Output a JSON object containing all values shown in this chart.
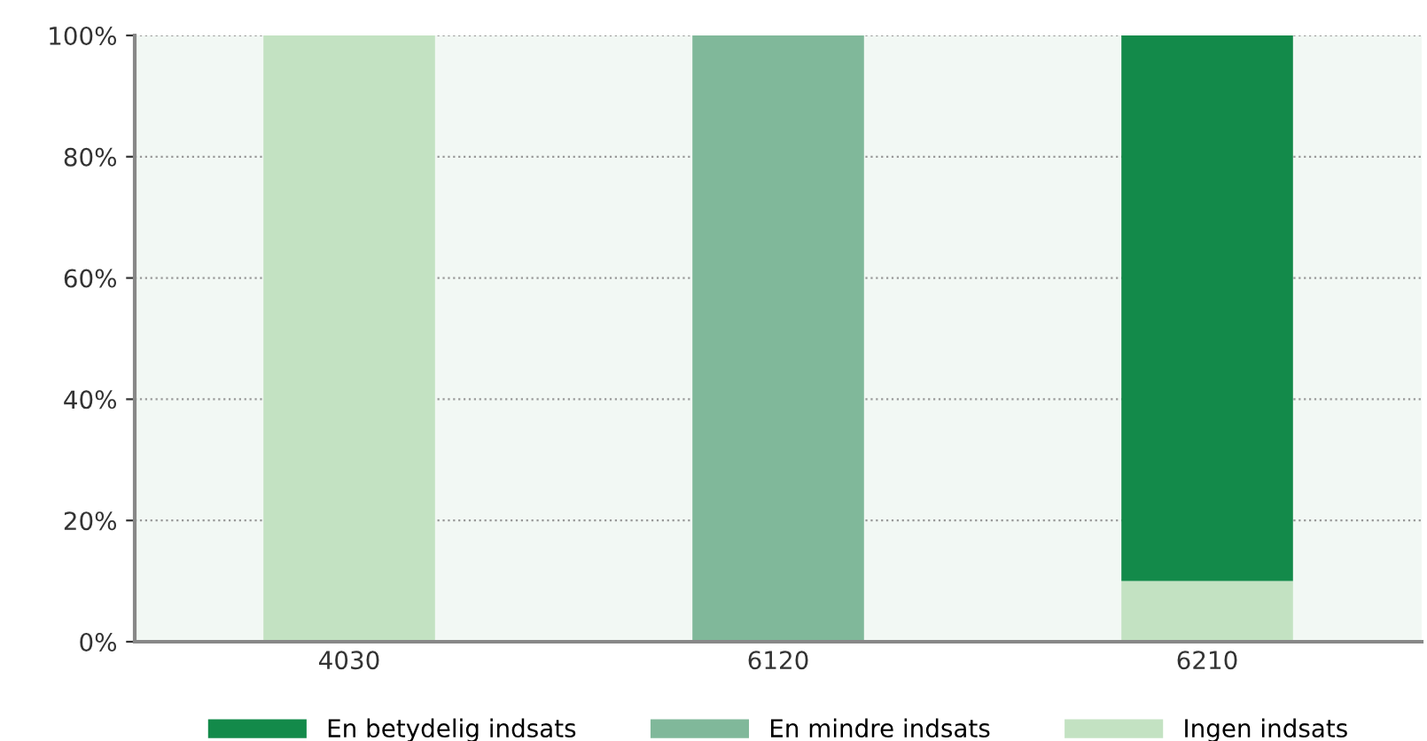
{
  "chart_data": {
    "type": "bar",
    "stacked": true,
    "categories": [
      "4030",
      "6120",
      "6210"
    ],
    "series": [
      {
        "name": "Ingen indsats",
        "color": "#c3e2c2",
        "values": [
          100,
          0,
          10
        ]
      },
      {
        "name": "En mindre indsats",
        "color": "#80b89a",
        "values": [
          0,
          100,
          0
        ]
      },
      {
        "name": "En betydelig indsats",
        "color": "#138a4a",
        "values": [
          0,
          0,
          90
        ]
      }
    ],
    "ylim": [
      0,
      100
    ],
    "yticks": [
      {
        "value": 0,
        "label": "0%"
      },
      {
        "value": 20,
        "label": "20%"
      },
      {
        "value": 40,
        "label": "40%"
      },
      {
        "value": 60,
        "label": "60%"
      },
      {
        "value": 80,
        "label": "80%"
      },
      {
        "value": 100,
        "label": "100%"
      }
    ],
    "grid": "y",
    "legend": "bottom"
  }
}
